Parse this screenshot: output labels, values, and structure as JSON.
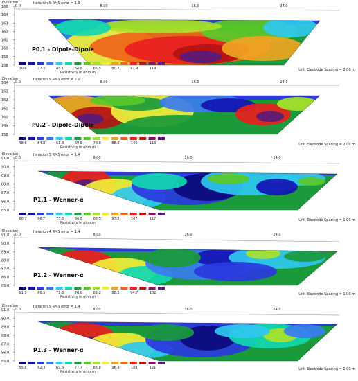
{
  "colors": {
    "scale": [
      "#0a0a7a",
      "#1414b4",
      "#2a3ae0",
      "#3a7cf0",
      "#2fc8f0",
      "#12d8b0",
      "#1a9a3a",
      "#5ac82a",
      "#a8e22a",
      "#f2ee3a",
      "#f0a422",
      "#f0641a",
      "#e81e1e",
      "#b41414",
      "#8a1060",
      "#5a1a7a"
    ]
  },
  "chart_data": [
    {
      "type": "heatmap",
      "title": "P0.1 - Dipole-Dipole",
      "ylabel": "Elevation",
      "subtitle": "Iteration 5 RMS error = 1.9",
      "y_ticks": [
        "165",
        "164",
        "163",
        "162",
        "161",
        "160",
        "159",
        "158"
      ],
      "x_ticks": [
        "0.0",
        "8.00",
        "16.0",
        "24.0"
      ],
      "legend_title": "Resistivity in ohm.m",
      "legend_values": [
        "30.6",
        "37.2",
        "45.1",
        "54.8",
        "66.5",
        "80.7",
        "97.9",
        "119"
      ],
      "electrode_spacing": "Unit Electrode Spacing = 2.00 m"
    },
    {
      "type": "heatmap",
      "title": "P0.2 - Dipole-Dipole",
      "ylabel": "Elevation",
      "subtitle": "Iteration 5 RMS error = 2.0",
      "y_ticks": [
        "164",
        "163",
        "162",
        "161",
        "160",
        "159",
        "158"
      ],
      "x_ticks": [
        "0.0",
        "8.00",
        "16.0",
        "24.0"
      ],
      "legend_title": "Resistivity in ohm.m",
      "legend_values": [
        "48.6",
        "54.8",
        "61.8",
        "69.8",
        "78.8",
        "88.9",
        "100",
        "113"
      ],
      "electrode_spacing": "Unit Electrode Spacing = 2.00 m"
    },
    {
      "type": "heatmap",
      "title": "P1.1 - Wenner-α",
      "ylabel": "Elevation",
      "subtitle": "Iteration 5 RMS error = 1.4",
      "y_ticks": [
        "91.0",
        "90.0",
        "89.0",
        "88.0",
        "87.0",
        "86.0",
        "85.0"
      ],
      "x_ticks": [
        "0.0",
        "8.00",
        "16.0",
        "24.0"
      ],
      "legend_title": "Resistivity in ohm.m",
      "legend_values": [
        "60.7",
        "66.7",
        "73.3",
        "80.5",
        "88.5",
        "97.2",
        "107",
        "117"
      ],
      "electrode_spacing": "Unit Electrode Spacing = 1.00 m"
    },
    {
      "type": "heatmap",
      "title": "P1.2 - Wenner-α",
      "ylabel": "Elevation",
      "subtitle": "Iteration 4 RMS error = 1.4",
      "y_ticks": [
        "91.0",
        "90.0",
        "89.0",
        "88.0",
        "87.0",
        "86.0",
        "85.0"
      ],
      "x_ticks": [
        "0.0",
        "8.00",
        "16.0",
        "24.0"
      ],
      "legend_title": "Resistivity in ohm.m",
      "legend_values": [
        "61.9",
        "66.5",
        "71.3",
        "76.6",
        "82.2",
        "88.2",
        "94.7",
        "102"
      ],
      "electrode_spacing": "Unit Electrode Spacing = 1.00 m"
    },
    {
      "type": "heatmap",
      "title": "P1.3 - Wenner-α",
      "ylabel": "Elevation",
      "subtitle": "Iteration 5 RMS error = 1.4",
      "y_ticks": [
        "91.0",
        "90.0",
        "89.0",
        "88.0",
        "87.0",
        "86.0",
        "85.0"
      ],
      "x_ticks": [
        "0.0",
        "8.00",
        "16.0",
        "24.0"
      ],
      "legend_title": "Resistivity in ohm.m",
      "legend_values": [
        "55.8",
        "62.3",
        "69.6",
        "77.7",
        "86.8",
        "96.9",
        "108",
        "121"
      ],
      "electrode_spacing": "Unit Electrode Spacing = 1.00 m"
    }
  ]
}
